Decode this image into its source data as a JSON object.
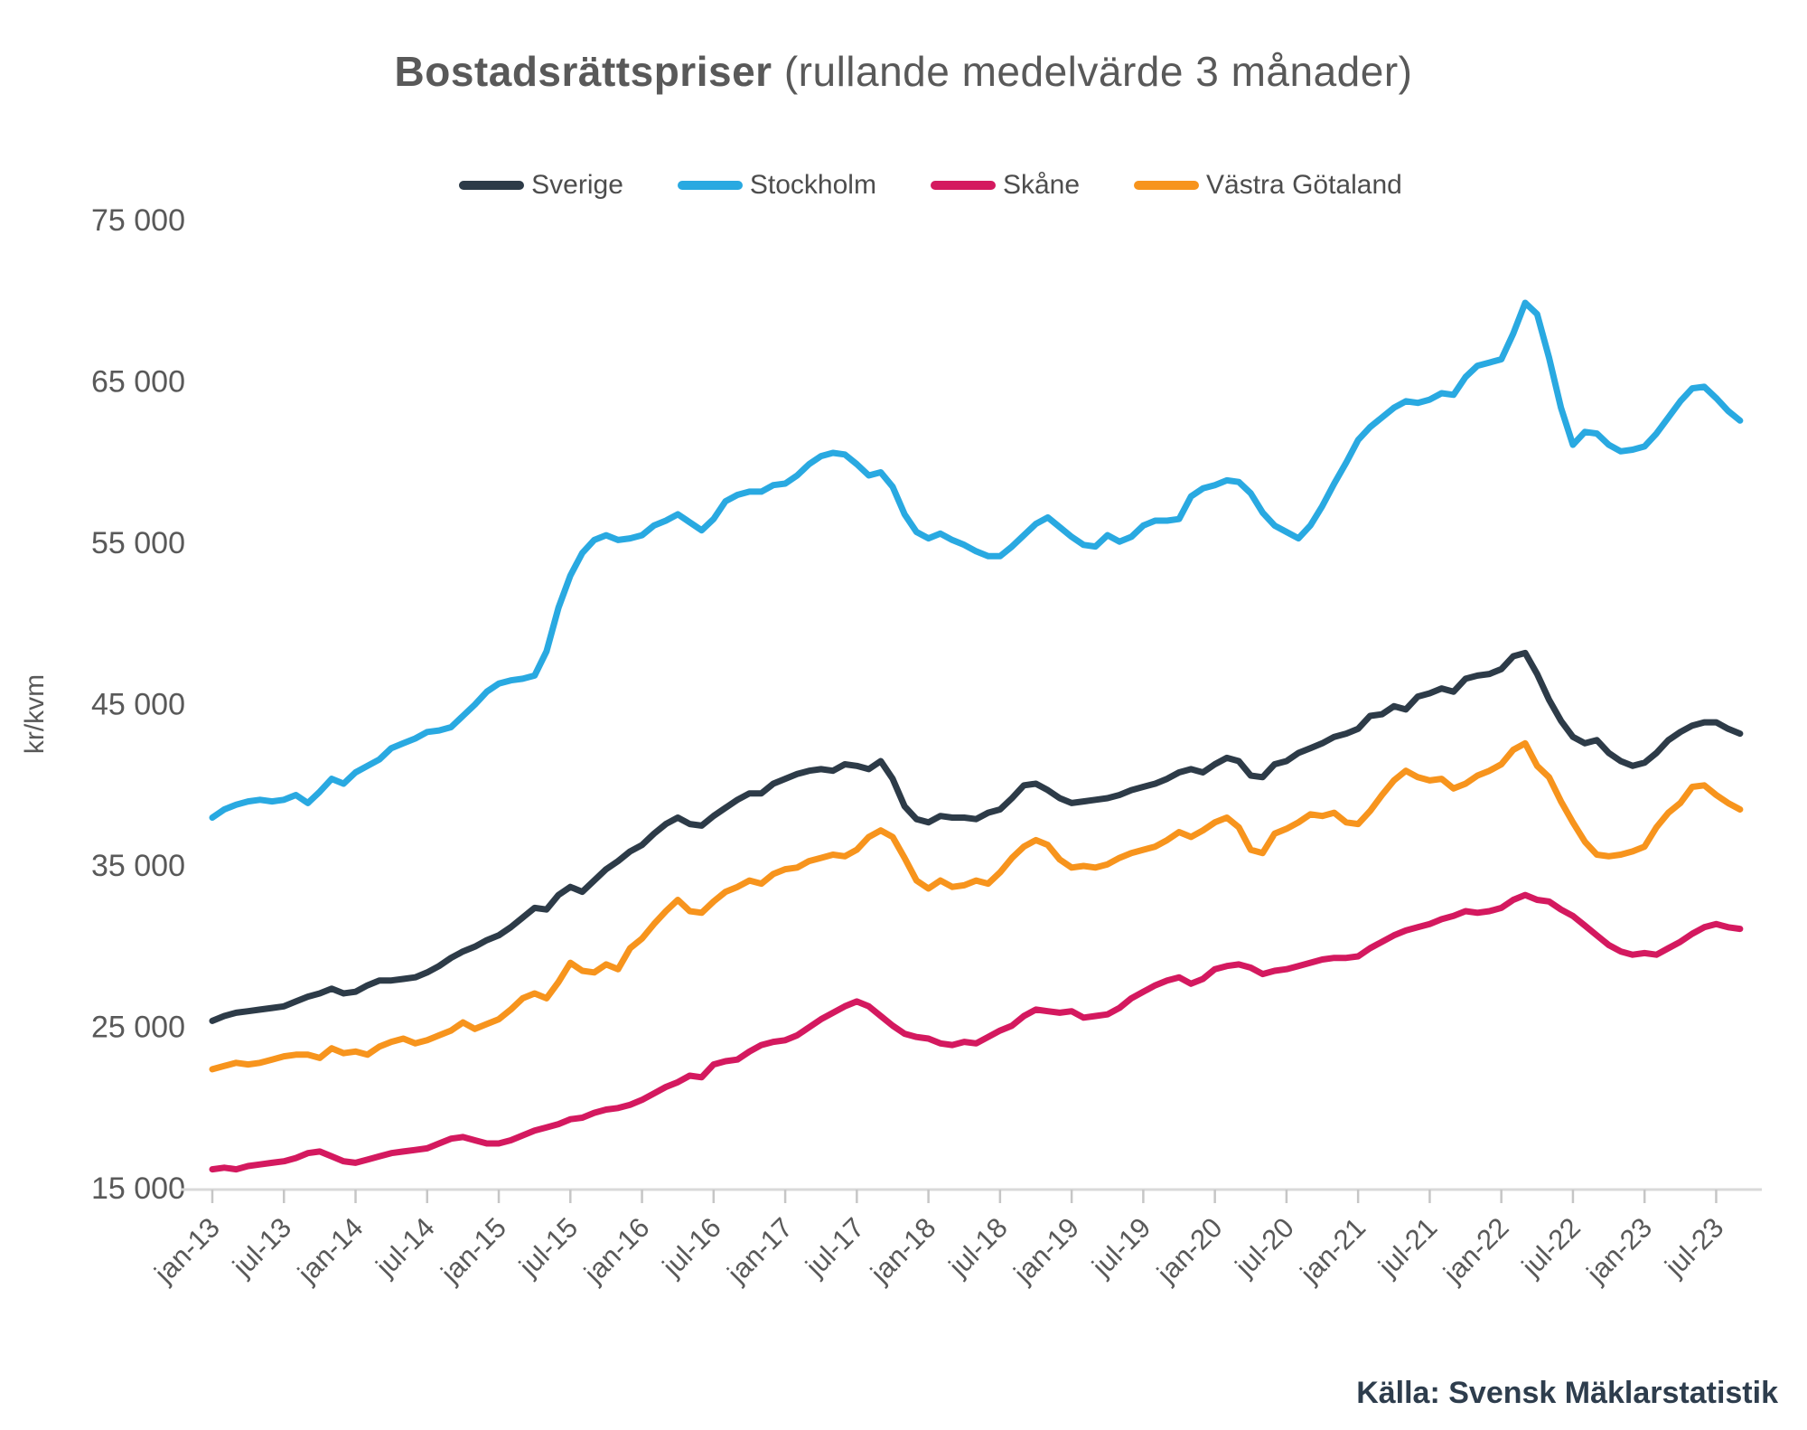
{
  "title": {
    "main": "Bostadsrättspriser",
    "suffix": " (rullande medelvärde 3 månader)"
  },
  "y_axis_title": "kr/kvm",
  "source_label": "Källa: Svensk Mäklarstatistik",
  "colors": {
    "sverige": "#2d3b48",
    "stockholm": "#29a9e1",
    "skane": "#d4195f",
    "vastra_gotaland": "#f7941d",
    "axis_line": "#d9d9d9",
    "tick_mark": "#c6c6c6",
    "text_gray": "#595959"
  },
  "chart_data": {
    "type": "line",
    "title": "Bostadsrättspriser (rullande medelvärde 3 månader)",
    "ylabel": "kr/kvm",
    "xlabel": "",
    "ylim": [
      15000,
      75000
    ],
    "grid": false,
    "legend_position": "top",
    "x_start": "jan-13",
    "x_end": "sep-23",
    "x_frequency": "monthly",
    "x_tick_labels": [
      "jan-13",
      "jul-13",
      "jan-14",
      "jul-14",
      "jan-15",
      "jul-15",
      "jan-16",
      "jul-16",
      "jan-17",
      "jul-17",
      "jan-18",
      "jul-18",
      "jan-19",
      "jul-19",
      "jan-20",
      "jul-20",
      "jan-21",
      "jul-21",
      "jan-22",
      "jul-22",
      "jan-23",
      "jul-23"
    ],
    "x_tick_every": 6,
    "y_tick_labels": [
      "15 000",
      "25 000",
      "35 000",
      "45 000",
      "55 000",
      "65 000",
      "75 000"
    ],
    "y_tick_values": [
      15000,
      25000,
      35000,
      45000,
      55000,
      65000,
      75000
    ],
    "series": [
      {
        "name": "Sverige",
        "color": "#2d3b48",
        "values": [
          25400,
          25700,
          25900,
          26000,
          26100,
          26200,
          26300,
          26600,
          26900,
          27100,
          27400,
          27100,
          27200,
          27600,
          27900,
          27900,
          28000,
          28100,
          28400,
          28800,
          29300,
          29700,
          30000,
          30400,
          30700,
          31200,
          31800,
          32400,
          32300,
          33200,
          33700,
          33400,
          34100,
          34800,
          35300,
          35900,
          36300,
          37000,
          37600,
          38000,
          37600,
          37500,
          38100,
          38600,
          39100,
          39500,
          39500,
          40100,
          40400,
          40700,
          40900,
          41000,
          40900,
          41300,
          41200,
          41000,
          41500,
          40400,
          38700,
          37900,
          37700,
          38100,
          38000,
          38000,
          37900,
          38300,
          38500,
          39200,
          40000,
          40100,
          39700,
          39200,
          38900,
          39000,
          39100,
          39200,
          39400,
          39700,
          39900,
          40100,
          40400,
          40800,
          41000,
          40800,
          41300,
          41700,
          41500,
          40600,
          40500,
          41300,
          41500,
          42000,
          42300,
          42600,
          43000,
          43200,
          43500,
          44300,
          44400,
          44900,
          44700,
          45500,
          45700,
          46000,
          45800,
          46600,
          46800,
          46900,
          47200,
          48000,
          48200,
          46900,
          45300,
          44000,
          43000,
          42600,
          42800,
          42000,
          41500,
          41200,
          41400,
          42000,
          42800,
          43300,
          43700,
          43900,
          43900,
          43500,
          43200
        ]
      },
      {
        "name": "Stockholm",
        "color": "#29a9e1",
        "values": [
          38000,
          38500,
          38800,
          39000,
          39100,
          39000,
          39100,
          39400,
          38900,
          39600,
          40400,
          40100,
          40800,
          41200,
          41600,
          42300,
          42600,
          42900,
          43300,
          43400,
          43600,
          44300,
          45000,
          45800,
          46300,
          46500,
          46600,
          46800,
          48300,
          51000,
          53000,
          54400,
          55200,
          55500,
          55200,
          55300,
          55500,
          56100,
          56400,
          56800,
          56300,
          55800,
          56500,
          57600,
          58000,
          58200,
          58200,
          58600,
          58700,
          59200,
          59900,
          60400,
          60600,
          60500,
          59900,
          59200,
          59400,
          58500,
          56800,
          55700,
          55300,
          55600,
          55200,
          54900,
          54500,
          54200,
          54200,
          54800,
          55500,
          56200,
          56600,
          56000,
          55400,
          54900,
          54800,
          55500,
          55100,
          55400,
          56100,
          56400,
          56400,
          56500,
          57900,
          58400,
          58600,
          58900,
          58800,
          58100,
          56900,
          56100,
          55700,
          55300,
          56100,
          57300,
          58700,
          60000,
          61400,
          62200,
          62800,
          63400,
          63800,
          63700,
          63900,
          64300,
          64200,
          65300,
          66000,
          66200,
          66400,
          68000,
          69900,
          69200,
          66500,
          63400,
          61100,
          61900,
          61800,
          61100,
          60700,
          60800,
          61000,
          61800,
          62800,
          63800,
          64600,
          64700,
          64000,
          63200,
          62600
        ]
      },
      {
        "name": "Skåne",
        "color": "#d4195f",
        "values": [
          16200,
          16300,
          16200,
          16400,
          16500,
          16600,
          16700,
          16900,
          17200,
          17300,
          17000,
          16700,
          16600,
          16800,
          17000,
          17200,
          17300,
          17400,
          17500,
          17800,
          18100,
          18200,
          18000,
          17800,
          17800,
          18000,
          18300,
          18600,
          18800,
          19000,
          19300,
          19400,
          19700,
          19900,
          20000,
          20200,
          20500,
          20900,
          21300,
          21600,
          22000,
          21900,
          22700,
          22900,
          23000,
          23500,
          23900,
          24100,
          24200,
          24500,
          25000,
          25500,
          25900,
          26300,
          26600,
          26300,
          25700,
          25100,
          24600,
          24400,
          24300,
          24000,
          23900,
          24100,
          24000,
          24400,
          24800,
          25100,
          25700,
          26100,
          26000,
          25900,
          26000,
          25600,
          25700,
          25800,
          26200,
          26800,
          27200,
          27600,
          27900,
          28100,
          27700,
          28000,
          28600,
          28800,
          28900,
          28700,
          28300,
          28500,
          28600,
          28800,
          29000,
          29200,
          29300,
          29300,
          29400,
          29900,
          30300,
          30700,
          31000,
          31200,
          31400,
          31700,
          31900,
          32200,
          32100,
          32200,
          32400,
          32900,
          33200,
          32900,
          32800,
          32300,
          31900,
          31300,
          30700,
          30100,
          29700,
          29500,
          29600,
          29500,
          29900,
          30300,
          30800,
          31200,
          31400,
          31200,
          31100
        ]
      },
      {
        "name": "Västra Götaland",
        "color": "#f7941d",
        "values": [
          22400,
          22600,
          22800,
          22700,
          22800,
          23000,
          23200,
          23300,
          23300,
          23100,
          23700,
          23400,
          23500,
          23300,
          23800,
          24100,
          24300,
          24000,
          24200,
          24500,
          24800,
          25300,
          24900,
          25200,
          25500,
          26100,
          26800,
          27100,
          26800,
          27800,
          29000,
          28500,
          28400,
          28900,
          28600,
          29900,
          30500,
          31400,
          32200,
          32900,
          32200,
          32100,
          32800,
          33400,
          33700,
          34100,
          33900,
          34500,
          34800,
          34900,
          35300,
          35500,
          35700,
          35600,
          36000,
          36800,
          37200,
          36800,
          35500,
          34100,
          33600,
          34100,
          33700,
          33800,
          34100,
          33900,
          34600,
          35500,
          36200,
          36600,
          36300,
          35400,
          34900,
          35000,
          34900,
          35100,
          35500,
          35800,
          36000,
          36200,
          36600,
          37100,
          36800,
          37200,
          37700,
          38000,
          37400,
          36000,
          35800,
          37000,
          37300,
          37700,
          38200,
          38100,
          38300,
          37700,
          37600,
          38400,
          39400,
          40300,
          40900,
          40500,
          40300,
          40400,
          39800,
          40100,
          40600,
          40900,
          41300,
          42200,
          42600,
          41200,
          40500,
          39000,
          37700,
          36500,
          35700,
          35600,
          35700,
          35900,
          36200,
          37400,
          38300,
          38900,
          39900,
          40000,
          39400,
          38900,
          38500
        ]
      }
    ]
  },
  "geometry_note": "y: 15000 at px1315, 75000 at px244; x: jan-13 at px235, 13.21px per month"
}
